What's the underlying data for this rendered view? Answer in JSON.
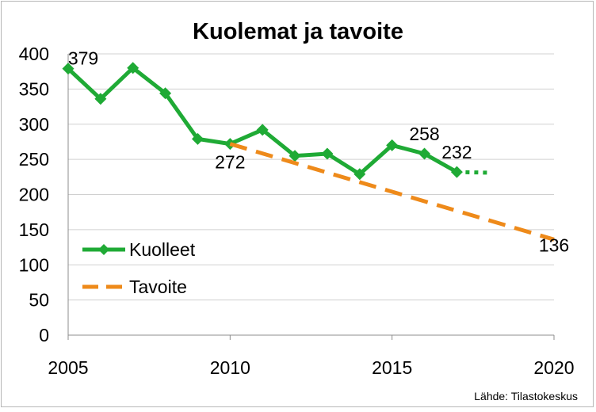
{
  "chart_data": {
    "type": "line",
    "title": "Kuolemat ja tavoite",
    "xlabel": "",
    "ylabel": "",
    "xlim": [
      2005,
      2020
    ],
    "ylim": [
      0,
      400
    ],
    "x_ticks": [
      "2005",
      "2010",
      "2015",
      "2020"
    ],
    "y_ticks": [
      "0",
      "50",
      "100",
      "150",
      "200",
      "250",
      "300",
      "350",
      "400"
    ],
    "grid": true,
    "legend_position": "bottom-left",
    "series": [
      {
        "name": "Kuolleet",
        "color": "#1faa35",
        "style": "solid",
        "marker": "diamond",
        "points": [
          {
            "x": 2005,
            "y": 379
          },
          {
            "x": 2006,
            "y": 336
          },
          {
            "x": 2007,
            "y": 380
          },
          {
            "x": 2008,
            "y": 344
          },
          {
            "x": 2009,
            "y": 279
          },
          {
            "x": 2010,
            "y": 272
          },
          {
            "x": 2011,
            "y": 292
          },
          {
            "x": 2012,
            "y": 255
          },
          {
            "x": 2013,
            "y": 258
          },
          {
            "x": 2014,
            "y": 229
          },
          {
            "x": 2015,
            "y": 270
          },
          {
            "x": 2016,
            "y": 258
          },
          {
            "x": 2017,
            "y": 232
          }
        ],
        "projection": {
          "style": "dotted",
          "points": [
            {
              "x": 2017,
              "y": 232
            },
            {
              "x": 2018,
              "y": 231
            }
          ]
        }
      },
      {
        "name": "Tavoite",
        "color": "#ee8a1a",
        "style": "dashed",
        "points": [
          {
            "x": 2010,
            "y": 272
          },
          {
            "x": 2020,
            "y": 136
          }
        ]
      }
    ],
    "data_labels": [
      {
        "text": "379",
        "x": 2005,
        "y": 379,
        "anchor": "right"
      },
      {
        "text": "272",
        "x": 2010,
        "y": 272,
        "anchor": "below"
      },
      {
        "text": "258",
        "x": 2016,
        "y": 258,
        "anchor": "above"
      },
      {
        "text": "232",
        "x": 2017,
        "y": 232,
        "anchor": "above"
      },
      {
        "text": "136",
        "x": 2020,
        "y": 136,
        "anchor": "right"
      }
    ],
    "source": "Lähde: Tilastokeskus"
  }
}
